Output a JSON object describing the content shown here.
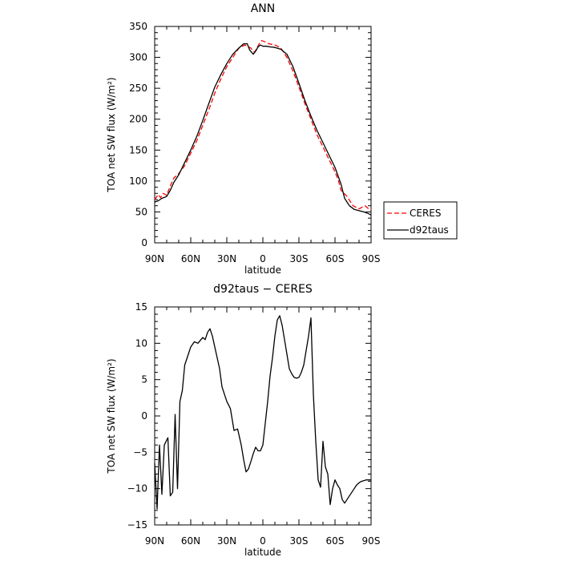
{
  "chart_data": [
    {
      "type": "line",
      "title": "ANN",
      "xlabel": "latitude",
      "ylabel": "TOA net SW flux (W/m²)",
      "xlim": [
        90,
        -90
      ],
      "ylim": [
        0,
        350
      ],
      "xticks": [
        90,
        60,
        30,
        0,
        -30,
        -60,
        -90
      ],
      "xtick_labels": [
        "90N",
        "60N",
        "30N",
        "0",
        "30S",
        "60S",
        "90S"
      ],
      "yticks": [
        0,
        50,
        100,
        150,
        200,
        250,
        300,
        350
      ],
      "ytick_labels": [
        "0",
        "50",
        "100",
        "150",
        "200",
        "250",
        "300",
        "350"
      ],
      "legend": "outside-right",
      "series": [
        {
          "name": "CERES",
          "color": "#ff0000",
          "style": "dashed",
          "x": [
            90,
            87,
            85,
            83,
            80,
            77,
            74,
            70,
            65,
            60,
            55,
            50,
            45,
            40,
            35,
            30,
            25,
            20,
            15,
            13,
            10,
            7,
            5,
            3,
            1,
            -2,
            -5,
            -10,
            -15,
            -20,
            -25,
            -30,
            -35,
            -40,
            -45,
            -50,
            -55,
            -60,
            -63,
            -65,
            -70,
            -75,
            -80,
            -85,
            -88,
            -90
          ],
          "y": [
            70,
            78,
            73,
            80,
            77,
            92,
            105,
            112,
            125,
            145,
            165,
            190,
            215,
            242,
            265,
            285,
            300,
            315,
            320,
            318,
            315,
            308,
            315,
            322,
            327,
            325,
            322,
            320,
            315,
            300,
            278,
            252,
            225,
            200,
            175,
            155,
            135,
            115,
            100,
            85,
            75,
            60,
            55,
            60,
            55,
            53
          ]
        },
        {
          "name": "d92taus",
          "color": "#000000",
          "style": "solid",
          "x": [
            90,
            87,
            84,
            80,
            77,
            74,
            70,
            65,
            60,
            55,
            50,
            45,
            40,
            35,
            30,
            25,
            20,
            16,
            13,
            11,
            8,
            6,
            4,
            2,
            0,
            -3,
            -6,
            -10,
            -15,
            -20,
            -25,
            -30,
            -35,
            -40,
            -45,
            -50,
            -55,
            -60,
            -65,
            -68,
            -72,
            -76,
            -80,
            -84,
            -88,
            -90
          ],
          "y": [
            66,
            68,
            72,
            75,
            85,
            98,
            110,
            130,
            150,
            172,
            198,
            225,
            252,
            272,
            290,
            305,
            315,
            322,
            322,
            312,
            305,
            310,
            317,
            320,
            318,
            318,
            317,
            316,
            313,
            305,
            285,
            258,
            230,
            205,
            182,
            162,
            142,
            122,
            95,
            72,
            60,
            54,
            52,
            50,
            47,
            45
          ]
        }
      ]
    },
    {
      "type": "line",
      "title": "d92taus − CERES",
      "xlabel": "latitude",
      "ylabel": "TOA net SW flux (W/m²)",
      "xlim": [
        90,
        -90
      ],
      "ylim": [
        -15,
        15
      ],
      "xticks": [
        90,
        60,
        30,
        0,
        -30,
        -60,
        -90
      ],
      "xtick_labels": [
        "90N",
        "60N",
        "30N",
        "0",
        "30S",
        "60S",
        "90S"
      ],
      "yticks": [
        -15,
        -10,
        -5,
        0,
        5,
        10,
        15
      ],
      "ytick_labels": [
        "−15",
        "−10",
        "−5",
        "0",
        "5",
        "10",
        "15"
      ],
      "series": [
        {
          "name": "",
          "color": "#000000",
          "style": "solid",
          "x": [
            90,
            88,
            86,
            84,
            82,
            79,
            77,
            75,
            73,
            71,
            69,
            67,
            65,
            63,
            60,
            57,
            54,
            50,
            48,
            46,
            44,
            42,
            40,
            38,
            36,
            34,
            32,
            30,
            27,
            24,
            21,
            18,
            16,
            14,
            12,
            10,
            8,
            6,
            4,
            2,
            0,
            -2,
            -4,
            -6,
            -8,
            -10,
            -12,
            -14,
            -16,
            -18,
            -20,
            -22,
            -24,
            -26,
            -28,
            -30,
            -32,
            -34,
            -36,
            -38,
            -40,
            -42,
            -44,
            -46,
            -48,
            -50,
            -52,
            -54,
            -56,
            -58,
            -60,
            -62,
            -64,
            -66,
            -68,
            -70,
            -72,
            -74,
            -76,
            -78,
            -80,
            -82,
            -84,
            -86,
            -88,
            -90
          ],
          "y": [
            -6.5,
            -12.8,
            -4.0,
            -10.8,
            -4.0,
            -3.0,
            -11.0,
            -10.5,
            0.2,
            -10.0,
            2.0,
            3.5,
            7.0,
            8.0,
            9.5,
            10.2,
            10.0,
            10.8,
            10.5,
            11.5,
            12.0,
            11.0,
            9.5,
            8.0,
            6.5,
            4.0,
            3.0,
            2.0,
            1.0,
            -2.0,
            -1.8,
            -4.0,
            -6.0,
            -7.7,
            -7.3,
            -6.3,
            -5.2,
            -4.3,
            -4.8,
            -4.8,
            -4.0,
            -1.0,
            2.0,
            5.5,
            8.0,
            11.0,
            13.2,
            13.8,
            12.5,
            10.5,
            8.5,
            6.5,
            5.8,
            5.3,
            5.2,
            5.3,
            6.0,
            7.0,
            9.0,
            11.0,
            13.5,
            3.0,
            -3.5,
            -8.8,
            -9.8,
            -3.5,
            -7.0,
            -8.0,
            -12.2,
            -10.0,
            -8.8,
            -9.5,
            -10.0,
            -11.5,
            -12.0,
            -11.5,
            -11.0,
            -10.5,
            -10.0,
            -9.5,
            -9.2,
            -9.0,
            -8.9,
            -8.8,
            -8.8,
            -8.8
          ]
        }
      ]
    }
  ]
}
